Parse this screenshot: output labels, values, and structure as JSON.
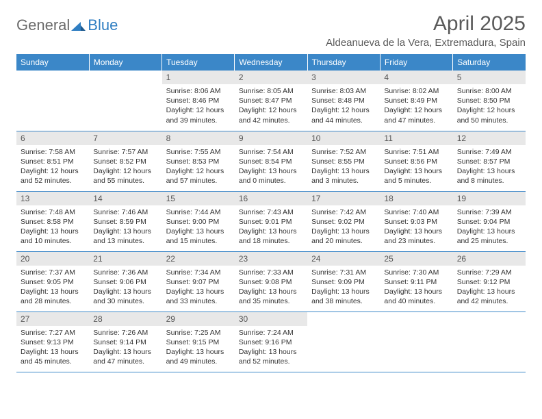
{
  "logo": {
    "general": "General",
    "blue": "Blue"
  },
  "title": "April 2025",
  "location": "Aldeanueva de la Vera, Extremadura, Spain",
  "colors": {
    "header_bg": "#3b87c8",
    "header_text": "#ffffff",
    "daynum_bg": "#e8e8e8",
    "border": "#3b87c8",
    "logo_gray": "#6b6b6b",
    "logo_blue": "#2f7ec2"
  },
  "weekdays": [
    "Sunday",
    "Monday",
    "Tuesday",
    "Wednesday",
    "Thursday",
    "Friday",
    "Saturday"
  ],
  "weeks": [
    [
      {
        "n": "",
        "sr": "",
        "ss": "",
        "dl": ""
      },
      {
        "n": "",
        "sr": "",
        "ss": "",
        "dl": ""
      },
      {
        "n": "1",
        "sr": "8:06 AM",
        "ss": "8:46 PM",
        "dl": "12 hours and 39 minutes."
      },
      {
        "n": "2",
        "sr": "8:05 AM",
        "ss": "8:47 PM",
        "dl": "12 hours and 42 minutes."
      },
      {
        "n": "3",
        "sr": "8:03 AM",
        "ss": "8:48 PM",
        "dl": "12 hours and 44 minutes."
      },
      {
        "n": "4",
        "sr": "8:02 AM",
        "ss": "8:49 PM",
        "dl": "12 hours and 47 minutes."
      },
      {
        "n": "5",
        "sr": "8:00 AM",
        "ss": "8:50 PM",
        "dl": "12 hours and 50 minutes."
      }
    ],
    [
      {
        "n": "6",
        "sr": "7:58 AM",
        "ss": "8:51 PM",
        "dl": "12 hours and 52 minutes."
      },
      {
        "n": "7",
        "sr": "7:57 AM",
        "ss": "8:52 PM",
        "dl": "12 hours and 55 minutes."
      },
      {
        "n": "8",
        "sr": "7:55 AM",
        "ss": "8:53 PM",
        "dl": "12 hours and 57 minutes."
      },
      {
        "n": "9",
        "sr": "7:54 AM",
        "ss": "8:54 PM",
        "dl": "13 hours and 0 minutes."
      },
      {
        "n": "10",
        "sr": "7:52 AM",
        "ss": "8:55 PM",
        "dl": "13 hours and 3 minutes."
      },
      {
        "n": "11",
        "sr": "7:51 AM",
        "ss": "8:56 PM",
        "dl": "13 hours and 5 minutes."
      },
      {
        "n": "12",
        "sr": "7:49 AM",
        "ss": "8:57 PM",
        "dl": "13 hours and 8 minutes."
      }
    ],
    [
      {
        "n": "13",
        "sr": "7:48 AM",
        "ss": "8:58 PM",
        "dl": "13 hours and 10 minutes."
      },
      {
        "n": "14",
        "sr": "7:46 AM",
        "ss": "8:59 PM",
        "dl": "13 hours and 13 minutes."
      },
      {
        "n": "15",
        "sr": "7:44 AM",
        "ss": "9:00 PM",
        "dl": "13 hours and 15 minutes."
      },
      {
        "n": "16",
        "sr": "7:43 AM",
        "ss": "9:01 PM",
        "dl": "13 hours and 18 minutes."
      },
      {
        "n": "17",
        "sr": "7:42 AM",
        "ss": "9:02 PM",
        "dl": "13 hours and 20 minutes."
      },
      {
        "n": "18",
        "sr": "7:40 AM",
        "ss": "9:03 PM",
        "dl": "13 hours and 23 minutes."
      },
      {
        "n": "19",
        "sr": "7:39 AM",
        "ss": "9:04 PM",
        "dl": "13 hours and 25 minutes."
      }
    ],
    [
      {
        "n": "20",
        "sr": "7:37 AM",
        "ss": "9:05 PM",
        "dl": "13 hours and 28 minutes."
      },
      {
        "n": "21",
        "sr": "7:36 AM",
        "ss": "9:06 PM",
        "dl": "13 hours and 30 minutes."
      },
      {
        "n": "22",
        "sr": "7:34 AM",
        "ss": "9:07 PM",
        "dl": "13 hours and 33 minutes."
      },
      {
        "n": "23",
        "sr": "7:33 AM",
        "ss": "9:08 PM",
        "dl": "13 hours and 35 minutes."
      },
      {
        "n": "24",
        "sr": "7:31 AM",
        "ss": "9:09 PM",
        "dl": "13 hours and 38 minutes."
      },
      {
        "n": "25",
        "sr": "7:30 AM",
        "ss": "9:11 PM",
        "dl": "13 hours and 40 minutes."
      },
      {
        "n": "26",
        "sr": "7:29 AM",
        "ss": "9:12 PM",
        "dl": "13 hours and 42 minutes."
      }
    ],
    [
      {
        "n": "27",
        "sr": "7:27 AM",
        "ss": "9:13 PM",
        "dl": "13 hours and 45 minutes."
      },
      {
        "n": "28",
        "sr": "7:26 AM",
        "ss": "9:14 PM",
        "dl": "13 hours and 47 minutes."
      },
      {
        "n": "29",
        "sr": "7:25 AM",
        "ss": "9:15 PM",
        "dl": "13 hours and 49 minutes."
      },
      {
        "n": "30",
        "sr": "7:24 AM",
        "ss": "9:16 PM",
        "dl": "13 hours and 52 minutes."
      },
      {
        "n": "",
        "sr": "",
        "ss": "",
        "dl": ""
      },
      {
        "n": "",
        "sr": "",
        "ss": "",
        "dl": ""
      },
      {
        "n": "",
        "sr": "",
        "ss": "",
        "dl": ""
      }
    ]
  ],
  "labels": {
    "sunrise": "Sunrise: ",
    "sunset": "Sunset: ",
    "daylight": "Daylight: "
  }
}
